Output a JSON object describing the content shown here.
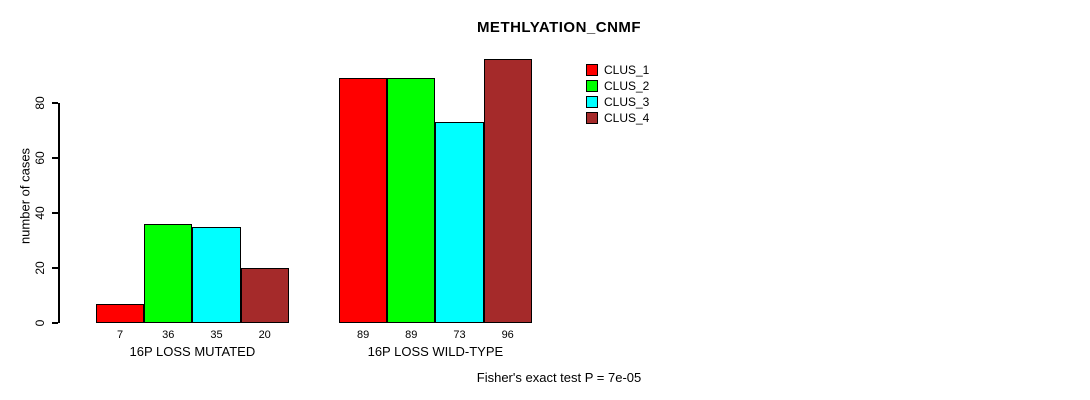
{
  "figure": {
    "background": "#FFFFFF"
  },
  "chart_data": {
    "type": "bar",
    "title": "METHLYATION_CNMF",
    "xlabel": "",
    "ylabel": "number of cases",
    "ylim": [
      0,
      96
    ],
    "yticks": [
      0,
      20,
      40,
      60,
      80
    ],
    "grid": false,
    "legend_position": "top-right",
    "categories": [
      "16P LOSS MUTATED",
      "16P LOSS WILD-TYPE"
    ],
    "series": [
      {
        "name": "CLUS_1",
        "color": "#FF0000",
        "values": [
          7,
          89
        ]
      },
      {
        "name": "CLUS_2",
        "color": "#00FF00",
        "values": [
          36,
          89
        ]
      },
      {
        "name": "CLUS_3",
        "color": "#00FFFF",
        "values": [
          35,
          73
        ]
      },
      {
        "name": "CLUS_4",
        "color": "#A52A2A",
        "values": [
          20,
          96
        ]
      }
    ],
    "bar_labels": [
      [
        7,
        36,
        35,
        20
      ],
      [
        89,
        89,
        73,
        96
      ]
    ],
    "annotation": "Fisher's exact test P = 7e-05"
  }
}
